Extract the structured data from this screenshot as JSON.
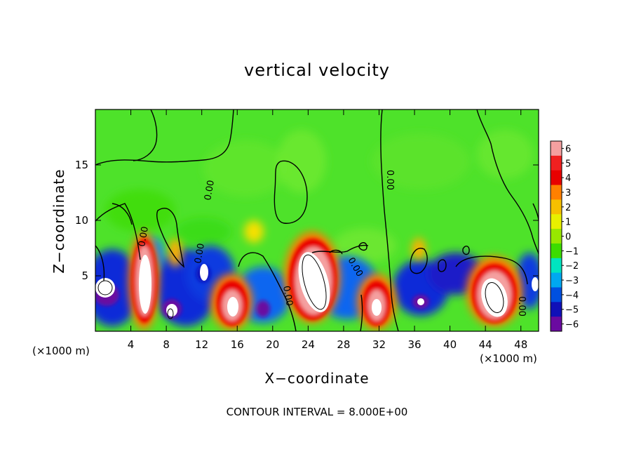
{
  "chart_data": {
    "type": "heatmap",
    "title": "vertical velocity",
    "xlabel": "X−coordinate",
    "ylabel": "Z−coordinate",
    "x_unit_left": "(×1000 m)",
    "x_unit_right": "(×1000 m)",
    "xlim": [
      0,
      50
    ],
    "ylim": [
      0,
      20
    ],
    "x_ticks": [
      4,
      8,
      12,
      16,
      20,
      24,
      28,
      32,
      36,
      40,
      44,
      48
    ],
    "y_ticks": [
      5,
      10,
      15
    ],
    "colorbar": {
      "ticks": [
        6,
        5,
        4,
        3,
        2,
        1,
        0,
        -1,
        -2,
        -3,
        -4,
        -5,
        -6
      ],
      "tick_labels": [
        "6",
        "5",
        "4",
        "3",
        "2",
        "1",
        "0",
        "−1",
        "−2",
        "−3",
        "−4",
        "−5",
        "−6"
      ],
      "colors": [
        "#f4a0a0",
        "#f02020",
        "#e80000",
        "#ff8000",
        "#f6c000",
        "#e8f000",
        "#98e800",
        "#3cdc00",
        "#00e4c0",
        "#00a8f0",
        "#0050e0",
        "#1010b8",
        "#6a0aa0"
      ]
    },
    "contour_interval_text": "CONTOUR INTERVAL = 8.000E+00",
    "contour_labels": [
      "0.00",
      "0.00",
      "0.00",
      "0.00",
      "0.00",
      "0.00",
      "0.00"
    ],
    "features": [
      {
        "x": 3,
        "z": 3,
        "value": -6
      },
      {
        "x": 5.5,
        "z": 4,
        "value": 6
      },
      {
        "x": 8.5,
        "z": 2,
        "value": -5
      },
      {
        "x": 9.5,
        "z": 6,
        "value": 3
      },
      {
        "x": 12,
        "z": 5,
        "value": -5
      },
      {
        "x": 15,
        "z": 2.5,
        "value": 6
      },
      {
        "x": 18,
        "z": 9,
        "value": 2
      },
      {
        "x": 20,
        "z": 3,
        "value": -4
      },
      {
        "x": 24,
        "z": 5,
        "value": 7
      },
      {
        "x": 28,
        "z": 4,
        "value": -4
      },
      {
        "x": 31.5,
        "z": 2.5,
        "value": 6
      },
      {
        "x": 35,
        "z": 6,
        "value": 3
      },
      {
        "x": 36.5,
        "z": 3,
        "value": -5
      },
      {
        "x": 40,
        "z": 5,
        "value": -4
      },
      {
        "x": 45,
        "z": 3.5,
        "value": 7
      },
      {
        "x": 48,
        "z": 3,
        "value": -3
      }
    ]
  }
}
